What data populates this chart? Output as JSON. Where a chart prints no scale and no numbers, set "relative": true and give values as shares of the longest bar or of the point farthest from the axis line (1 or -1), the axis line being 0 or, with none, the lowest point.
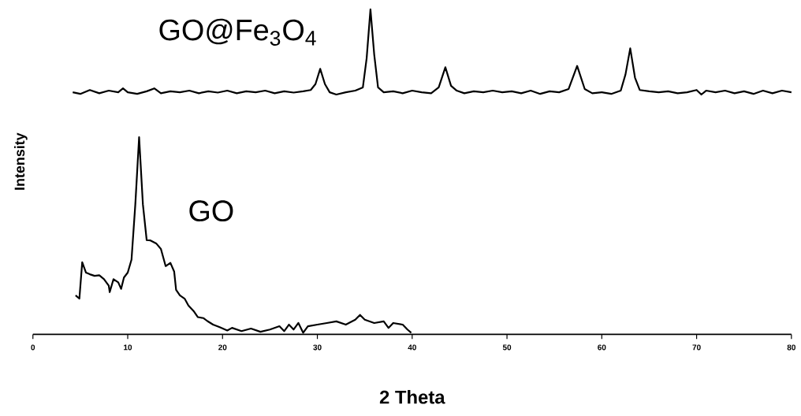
{
  "chart_data": {
    "type": "line",
    "relative": true,
    "xlabel": "2 Theta",
    "ylabel": "Intensity",
    "xlim": [
      0,
      80
    ],
    "xticks": [
      0,
      10,
      20,
      30,
      40,
      50,
      60,
      70,
      80
    ],
    "tick_labels": "x",
    "series": [
      {
        "name": "GO@Fe$_{3}$O$_{4}$",
        "color": "#000000",
        "x": [
          4.2,
          5,
          6,
          7,
          8,
          9,
          9.5,
          10,
          11,
          12,
          12.8,
          13.5,
          14.5,
          15.5,
          16.5,
          17.5,
          18.5,
          19.5,
          20.5,
          21.5,
          22.5,
          23.5,
          24.5,
          25.5,
          26.5,
          27.5,
          28.5,
          29.3,
          29.8,
          30.3,
          30.8,
          31.3,
          32,
          33,
          34,
          34.8,
          35.2,
          35.6,
          36.0,
          36.4,
          37,
          38,
          39,
          40,
          41,
          42,
          42.8,
          43.5,
          44.1,
          44.7,
          45.5,
          46.5,
          47.5,
          48.5,
          49.5,
          50.5,
          51.5,
          52.5,
          53.5,
          54.5,
          55.5,
          56.5,
          57.4,
          58.2,
          59,
          60,
          61,
          62,
          62.5,
          63.0,
          63.5,
          64,
          65,
          66,
          67,
          68,
          69,
          70,
          70.5,
          71,
          72,
          73,
          74,
          75,
          76,
          77,
          78,
          79,
          80
        ],
        "values": [
          0.745,
          0.74,
          0.752,
          0.742,
          0.75,
          0.745,
          0.757,
          0.745,
          0.74,
          0.748,
          0.757,
          0.742,
          0.748,
          0.745,
          0.75,
          0.742,
          0.748,
          0.744,
          0.75,
          0.742,
          0.748,
          0.745,
          0.75,
          0.742,
          0.748,
          0.744,
          0.748,
          0.752,
          0.77,
          0.817,
          0.77,
          0.745,
          0.738,
          0.745,
          0.75,
          0.76,
          0.85,
          1.0,
          0.86,
          0.76,
          0.745,
          0.748,
          0.742,
          0.75,
          0.745,
          0.742,
          0.76,
          0.822,
          0.765,
          0.75,
          0.742,
          0.748,
          0.745,
          0.75,
          0.745,
          0.748,
          0.742,
          0.75,
          0.74,
          0.748,
          0.745,
          0.755,
          0.826,
          0.755,
          0.742,
          0.745,
          0.74,
          0.75,
          0.8,
          0.88,
          0.79,
          0.752,
          0.748,
          0.745,
          0.748,
          0.742,
          0.745,
          0.752,
          0.738,
          0.75,
          0.745,
          0.75,
          0.742,
          0.748,
          0.74,
          0.75,
          0.742,
          0.75,
          0.745
        ]
      },
      {
        "name": "GO",
        "color": "#000000",
        "x": [
          4.5,
          4.9,
          5.2,
          5.6,
          6,
          6.5,
          7,
          7.5,
          8,
          8.1,
          8.5,
          9,
          9.3,
          9.6,
          10,
          10.4,
          10.8,
          11.2,
          11.6,
          12.0,
          12.4,
          13,
          13.5,
          14,
          14.5,
          14.9,
          15.1,
          15.5,
          16,
          16.4,
          17,
          17.4,
          18,
          18.4,
          19,
          19.7,
          20.5,
          21,
          22,
          23,
          24,
          25,
          26,
          26.5,
          27,
          27.5,
          28,
          28.5,
          29,
          30,
          31,
          32,
          33,
          34,
          34.5,
          35,
          36,
          37,
          37.5,
          38,
          39,
          39.5,
          39.9
        ],
        "values": [
          0.12,
          0.11,
          0.222,
          0.19,
          0.185,
          0.18,
          0.182,
          0.17,
          0.15,
          0.13,
          0.17,
          0.16,
          0.14,
          0.175,
          0.19,
          0.23,
          0.4,
          0.607,
          0.4,
          0.29,
          0.289,
          0.28,
          0.263,
          0.21,
          0.22,
          0.193,
          0.137,
          0.12,
          0.11,
          0.089,
          0.07,
          0.053,
          0.05,
          0.041,
          0.03,
          0.022,
          0.012,
          0.02,
          0.01,
          0.018,
          0.008,
          0.015,
          0.025,
          0.01,
          0.03,
          0.015,
          0.035,
          0.005,
          0.025,
          0.03,
          0.035,
          0.04,
          0.03,
          0.045,
          0.06,
          0.045,
          0.035,
          0.04,
          0.02,
          0.035,
          0.03,
          0.015,
          0.005
        ]
      }
    ]
  }
}
